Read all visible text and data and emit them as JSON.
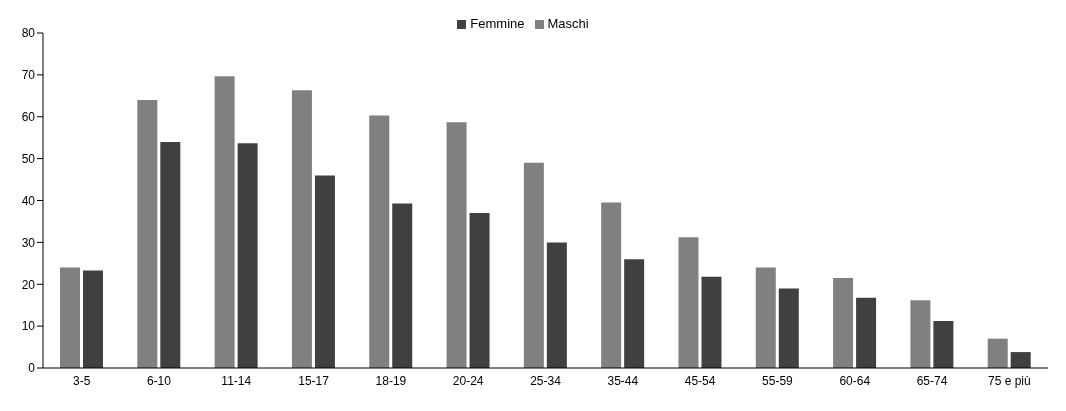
{
  "chart_data": {
    "type": "bar",
    "categories": [
      "3-5",
      "6-10",
      "11-14",
      "15-17",
      "18-19",
      "20-24",
      "25-34",
      "35-44",
      "45-54",
      "55-59",
      "60-64",
      "65-74",
      "75 e più"
    ],
    "series": [
      {
        "name": "Maschi",
        "color": "#808080",
        "values": [
          24,
          64,
          69.7,
          66.3,
          60.3,
          58.7,
          49,
          39.5,
          31.2,
          24,
          21.5,
          16.2,
          7
        ]
      },
      {
        "name": "Femmine",
        "color": "#404040",
        "values": [
          23.3,
          54,
          53.7,
          46,
          39.3,
          37,
          30,
          26,
          21.8,
          19,
          16.8,
          11.2,
          3.8
        ]
      }
    ],
    "ylim": [
      0,
      80
    ],
    "yticks": [
      0,
      10,
      20,
      30,
      40,
      50,
      60,
      70,
      80
    ],
    "grid": false,
    "legend": "top"
  }
}
